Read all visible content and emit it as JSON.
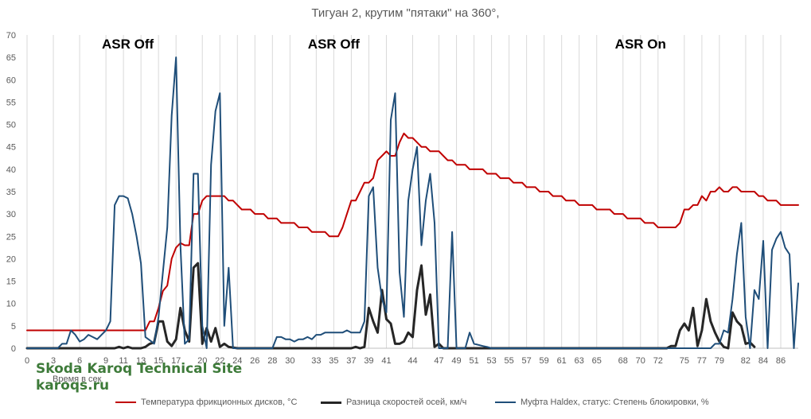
{
  "chart_data": {
    "type": "line",
    "title": "Тигуан 2, крутим \"пятаки\" на 360°,",
    "xlabel": "Время в сек",
    "ylabel": "",
    "ylim": [
      0,
      70
    ],
    "y_ticks": [
      0,
      5,
      10,
      15,
      20,
      25,
      30,
      35,
      40,
      45,
      50,
      55,
      60,
      65,
      70
    ],
    "x_range": [
      0,
      88
    ],
    "x_ticks": [
      0,
      3,
      6,
      9,
      11,
      13,
      15,
      17,
      20,
      22,
      24,
      26,
      28,
      30,
      33,
      35,
      37,
      39,
      41,
      44,
      47,
      49,
      51,
      53,
      55,
      57,
      59,
      61,
      63,
      65,
      68,
      70,
      72,
      75,
      77,
      79,
      82,
      84,
      86
    ],
    "grid": "vertical",
    "legend_position": "bottom",
    "annotations": [
      {
        "text": "ASR Off",
        "x": 11.5,
        "y": 67
      },
      {
        "text": "ASR Off",
        "x": 35,
        "y": 67
      },
      {
        "text": "ASR On",
        "x": 70,
        "y": 67
      }
    ],
    "series": [
      {
        "name": "Температура фрикционных дисков, °C",
        "color": "#c00000",
        "points": [
          [
            0,
            4
          ],
          [
            13.5,
            4
          ],
          [
            14,
            6
          ],
          [
            14.5,
            6
          ],
          [
            15,
            9
          ],
          [
            15.5,
            12.8
          ],
          [
            16,
            14
          ],
          [
            16.5,
            20
          ],
          [
            17,
            22.5
          ],
          [
            17.5,
            23.5
          ],
          [
            18,
            23
          ],
          [
            18.5,
            23
          ],
          [
            19,
            30
          ],
          [
            19.5,
            30
          ],
          [
            20,
            33
          ],
          [
            20.5,
            34
          ],
          [
            22.5,
            34
          ],
          [
            23,
            33
          ],
          [
            23.5,
            33
          ],
          [
            24,
            32
          ],
          [
            24.5,
            31
          ],
          [
            25.5,
            31
          ],
          [
            26,
            30
          ],
          [
            27,
            30
          ],
          [
            27.5,
            29
          ],
          [
            28.5,
            29
          ],
          [
            29,
            28
          ],
          [
            30.5,
            28
          ],
          [
            31,
            27
          ],
          [
            32,
            27
          ],
          [
            32.5,
            26
          ],
          [
            34,
            26
          ],
          [
            34.5,
            25
          ],
          [
            35.5,
            25
          ],
          [
            36,
            27
          ],
          [
            36.5,
            30
          ],
          [
            37,
            33
          ],
          [
            37.5,
            33
          ],
          [
            38,
            35
          ],
          [
            38.5,
            37
          ],
          [
            39,
            37
          ],
          [
            39.5,
            38
          ],
          [
            40,
            42
          ],
          [
            40.5,
            43
          ],
          [
            41,
            44
          ],
          [
            41.5,
            43
          ],
          [
            42,
            43
          ],
          [
            42.5,
            46
          ],
          [
            43,
            48
          ],
          [
            43.5,
            47
          ],
          [
            44,
            47
          ],
          [
            44.5,
            46
          ],
          [
            45,
            45
          ],
          [
            45.5,
            45
          ],
          [
            46,
            44
          ],
          [
            47,
            44
          ],
          [
            47.5,
            43
          ],
          [
            48,
            42
          ],
          [
            48.5,
            42
          ],
          [
            49,
            41
          ],
          [
            50,
            41
          ],
          [
            50.5,
            40
          ],
          [
            52,
            40
          ],
          [
            52.5,
            39
          ],
          [
            53.5,
            39
          ],
          [
            54,
            38
          ],
          [
            55,
            38
          ],
          [
            55.5,
            37
          ],
          [
            56.5,
            37
          ],
          [
            57,
            36
          ],
          [
            58,
            36
          ],
          [
            58.5,
            35
          ],
          [
            59.5,
            35
          ],
          [
            60,
            34
          ],
          [
            61,
            34
          ],
          [
            61.5,
            33
          ],
          [
            62.5,
            33
          ],
          [
            63,
            32
          ],
          [
            64.5,
            32
          ],
          [
            65,
            31
          ],
          [
            66.5,
            31
          ],
          [
            67,
            30
          ],
          [
            68,
            30
          ],
          [
            68.5,
            29
          ],
          [
            70,
            29
          ],
          [
            70.5,
            28
          ],
          [
            71.5,
            28
          ],
          [
            72,
            27
          ],
          [
            74,
            27
          ],
          [
            74.5,
            28
          ],
          [
            75,
            31
          ],
          [
            75.5,
            31
          ],
          [
            76,
            32
          ],
          [
            76.5,
            32
          ],
          [
            77,
            34
          ],
          [
            77.5,
            33
          ],
          [
            78,
            35
          ],
          [
            78.5,
            35
          ],
          [
            79,
            36
          ],
          [
            79.5,
            35
          ],
          [
            80,
            35
          ],
          [
            80.5,
            36
          ],
          [
            81,
            36
          ],
          [
            81.5,
            35
          ],
          [
            83,
            35
          ],
          [
            83.5,
            34
          ],
          [
            84,
            34
          ],
          [
            84.5,
            33
          ],
          [
            85.5,
            33
          ],
          [
            86,
            32
          ],
          [
            88,
            32
          ],
          [
            88.5,
            31
          ],
          [
            89,
            31
          ],
          [
            89.5,
            30
          ],
          [
            90,
            30
          ]
        ]
      },
      {
        "name": "Разница скоростей осей, км/ч",
        "color": "#262626",
        "points": [
          [
            0,
            0
          ],
          [
            10,
            0
          ],
          [
            10.5,
            0.3
          ],
          [
            11,
            0
          ],
          [
            11.5,
            0.3
          ],
          [
            12,
            0
          ],
          [
            13,
            0
          ],
          [
            13.5,
            0.3
          ],
          [
            14,
            1
          ],
          [
            14.5,
            1.3
          ],
          [
            15,
            6
          ],
          [
            15.5,
            6
          ],
          [
            16,
            1.5
          ],
          [
            16.5,
            0.5
          ],
          [
            17,
            2
          ],
          [
            17.5,
            9
          ],
          [
            18,
            4
          ],
          [
            18.5,
            1.5
          ],
          [
            19,
            18
          ],
          [
            19.5,
            19
          ],
          [
            20,
            1
          ],
          [
            20.5,
            4.5
          ],
          [
            21,
            1.5
          ],
          [
            21.5,
            4.5
          ],
          [
            22,
            0.3
          ],
          [
            22.5,
            1
          ],
          [
            23,
            0.3
          ],
          [
            24,
            0
          ],
          [
            37,
            0
          ],
          [
            37.5,
            0.3
          ],
          [
            38,
            0
          ],
          [
            38.5,
            0.3
          ],
          [
            39,
            9
          ],
          [
            39.5,
            6
          ],
          [
            40,
            3.5
          ],
          [
            40.5,
            13
          ],
          [
            41,
            6.5
          ],
          [
            41.5,
            5.5
          ],
          [
            42,
            1
          ],
          [
            42.5,
            1
          ],
          [
            43,
            1.5
          ],
          [
            43.5,
            3.5
          ],
          [
            44,
            2.5
          ],
          [
            44.5,
            13
          ],
          [
            45,
            18.5
          ],
          [
            45.5,
            7.5
          ],
          [
            46,
            12
          ],
          [
            46.5,
            0.3
          ],
          [
            47,
            1
          ],
          [
            47.5,
            0
          ],
          [
            73,
            0
          ],
          [
            73.5,
            0.5
          ],
          [
            74,
            0.5
          ],
          [
            74.5,
            4
          ],
          [
            75,
            5.5
          ],
          [
            75.5,
            4
          ],
          [
            76,
            9
          ],
          [
            76.5,
            0.5
          ],
          [
            77,
            4
          ],
          [
            77.5,
            11
          ],
          [
            78,
            6
          ],
          [
            78.5,
            3.5
          ],
          [
            79,
            1.5
          ],
          [
            79.5,
            0.3
          ],
          [
            80,
            0
          ],
          [
            80.5,
            8
          ],
          [
            81,
            6
          ],
          [
            81.5,
            5
          ],
          [
            82,
            1
          ],
          [
            82.5,
            1.3
          ],
          [
            83,
            0.3
          ],
          [
            90,
            0
          ]
        ]
      },
      {
        "name": "Муфта Haldex, статус: Степень блокировки, %",
        "color": "#1f4e79",
        "points": [
          [
            0,
            0
          ],
          [
            3.5,
            0
          ],
          [
            4,
            1
          ],
          [
            4.5,
            1
          ],
          [
            5,
            4
          ],
          [
            5.5,
            3
          ],
          [
            6,
            1.5
          ],
          [
            6.5,
            2
          ],
          [
            7,
            3
          ],
          [
            7.5,
            2.5
          ],
          [
            8,
            2
          ],
          [
            8.5,
            3
          ],
          [
            9,
            4
          ],
          [
            9.5,
            6
          ],
          [
            10,
            32
          ],
          [
            10.5,
            34
          ],
          [
            11,
            34
          ],
          [
            11.5,
            33.5
          ],
          [
            12,
            30
          ],
          [
            12.5,
            25
          ],
          [
            13,
            19
          ],
          [
            13.5,
            2.5
          ],
          [
            14,
            1.8
          ],
          [
            14.5,
            1
          ],
          [
            15,
            7
          ],
          [
            15.5,
            17
          ],
          [
            16,
            27
          ],
          [
            16.5,
            52
          ],
          [
            17,
            65
          ],
          [
            17.5,
            23
          ],
          [
            18,
            1
          ],
          [
            18.5,
            2
          ],
          [
            19,
            39
          ],
          [
            19.5,
            39
          ],
          [
            20,
            5
          ],
          [
            20.5,
            0
          ],
          [
            21,
            41
          ],
          [
            21.5,
            53
          ],
          [
            22,
            57
          ],
          [
            22.5,
            5
          ],
          [
            23,
            18
          ],
          [
            23.5,
            0
          ],
          [
            24,
            0
          ],
          [
            28,
            0
          ],
          [
            28.5,
            2.5
          ],
          [
            29,
            2.5
          ],
          [
            29.5,
            2
          ],
          [
            30,
            2
          ],
          [
            30.5,
            1.5
          ],
          [
            31,
            2
          ],
          [
            31.5,
            2
          ],
          [
            32,
            2.5
          ],
          [
            32.5,
            2
          ],
          [
            33,
            3
          ],
          [
            33.5,
            3
          ],
          [
            34,
            3.5
          ],
          [
            36,
            3.5
          ],
          [
            36.5,
            4
          ],
          [
            37,
            3.5
          ],
          [
            38,
            3.5
          ],
          [
            38.5,
            6
          ],
          [
            39,
            34
          ],
          [
            39.5,
            36
          ],
          [
            40,
            18
          ],
          [
            40.5,
            11
          ],
          [
            41,
            8
          ],
          [
            41.5,
            51
          ],
          [
            42,
            57
          ],
          [
            42.5,
            17
          ],
          [
            43,
            7
          ],
          [
            43.5,
            33
          ],
          [
            44,
            40
          ],
          [
            44.5,
            45
          ],
          [
            45,
            23
          ],
          [
            45.5,
            33
          ],
          [
            46,
            39
          ],
          [
            46.5,
            28
          ],
          [
            47,
            0
          ],
          [
            48,
            0
          ],
          [
            48.5,
            26
          ],
          [
            49,
            0
          ],
          [
            50,
            0
          ],
          [
            50.5,
            3.5
          ],
          [
            51,
            1
          ],
          [
            52,
            0.5
          ],
          [
            52.5,
            0.3
          ],
          [
            53,
            0
          ],
          [
            78,
            0
          ],
          [
            78.5,
            1
          ],
          [
            79,
            1
          ],
          [
            79.5,
            4
          ],
          [
            80,
            3.5
          ],
          [
            80.5,
            11
          ],
          [
            81,
            21
          ],
          [
            81.5,
            28
          ],
          [
            82,
            7
          ],
          [
            82.5,
            0
          ],
          [
            83,
            13
          ],
          [
            83.5,
            11
          ],
          [
            84,
            24
          ],
          [
            84.5,
            0
          ],
          [
            85,
            22
          ],
          [
            85.5,
            24.5
          ],
          [
            86,
            26
          ],
          [
            86.5,
            22.5
          ],
          [
            87,
            21
          ],
          [
            87.5,
            0
          ],
          [
            88,
            14.5
          ],
          [
            88.5,
            11
          ],
          [
            89,
            0
          ],
          [
            90,
            0
          ]
        ]
      }
    ]
  },
  "watermark": {
    "line1": "Skoda Karoq Technical Site",
    "line2": "karoqs.ru"
  }
}
